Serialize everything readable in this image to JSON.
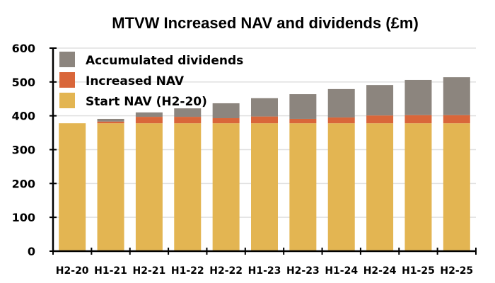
{
  "chart_data": {
    "type": "bar",
    "stacked": true,
    "title": "MTVW Increased NAV and dividends (£m)",
    "xlabel": "",
    "ylabel": "",
    "ylim": [
      0,
      600
    ],
    "yticks": [
      0,
      100,
      200,
      300,
      400,
      500,
      600
    ],
    "grid": true,
    "legend_position": "top-left",
    "categories": [
      "H2-20",
      "H1-21",
      "H2-21",
      "H1-22",
      "H2-22",
      "H1-23",
      "H2-23",
      "H1-24",
      "H2-24",
      "H1-25",
      "H2-25"
    ],
    "series": [
      {
        "name": "Start NAV (H2-20)",
        "color": "#e3b552",
        "values": [
          378,
          378,
          378,
          378,
          378,
          378,
          378,
          378,
          378,
          378,
          378
        ]
      },
      {
        "name": "Increased NAV",
        "color": "#d9663a",
        "values": [
          0,
          5,
          19,
          19,
          15,
          20,
          13,
          17,
          23,
          24,
          24
        ]
      },
      {
        "name": "Accumulated dividends",
        "color": "#8c857e",
        "values": [
          0,
          8,
          13,
          25,
          44,
          54,
          73,
          84,
          90,
          104,
          112
        ]
      }
    ],
    "legend_order": [
      "Accumulated dividends",
      "Increased NAV",
      "Start NAV (H2-20)"
    ]
  }
}
